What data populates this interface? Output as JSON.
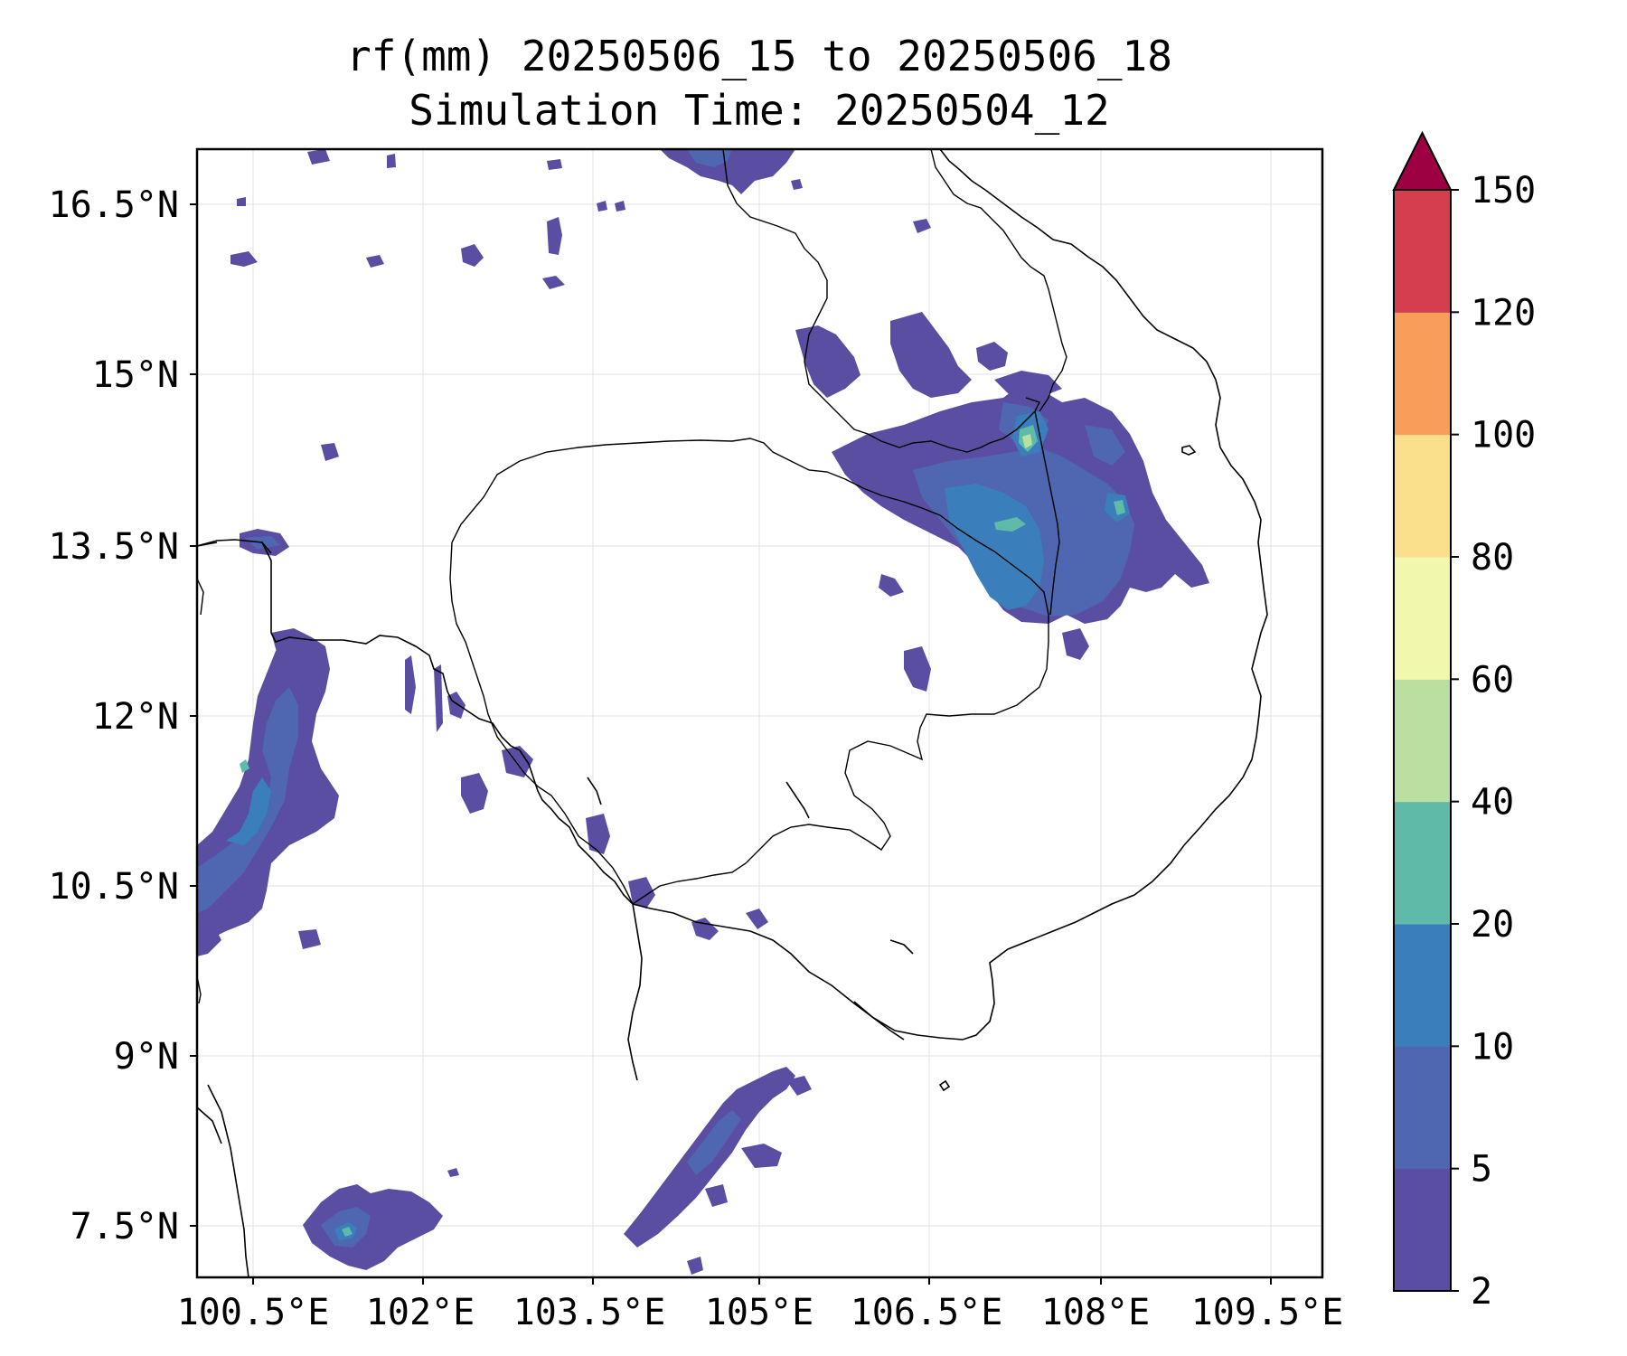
{
  "title": {
    "line1": "rf(mm) 20250506_15 to 20250506_18",
    "line2": "Simulation Time: 20250504_12"
  },
  "map": {
    "x_ticks": [
      "100.5°E",
      "102°E",
      "103.5°E",
      "105°E",
      "106.5°E",
      "108°E",
      "109.5°E"
    ],
    "y_ticks": [
      "16.5°N",
      "15°N",
      "13.5°N",
      "12°N",
      "10.5°N",
      "9°N",
      "7.5°N"
    ],
    "gridlines": true,
    "coastlines": true,
    "borders": true
  },
  "colorbar": {
    "ticks": [
      "2",
      "5",
      "10",
      "20",
      "40",
      "60",
      "80",
      "100",
      "120",
      "150"
    ],
    "colors": [
      "#5a4ea3",
      "#4f66b0",
      "#3a7fbc",
      "#5fbaa8",
      "#b9e0a0",
      "#f1f7ad",
      "#fae08c",
      "#f99d5a",
      "#d53e4f"
    ],
    "extend_color": "#9e0142",
    "extend": "max"
  }
}
